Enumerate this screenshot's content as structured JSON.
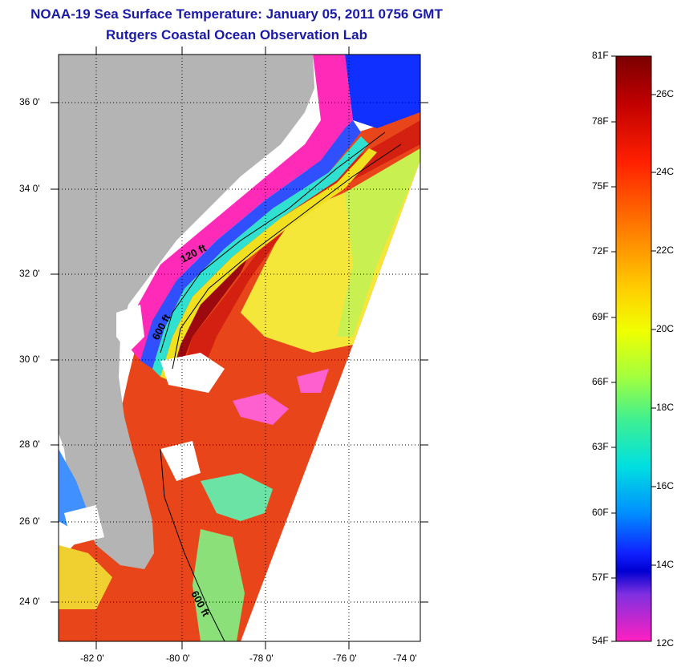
{
  "title": {
    "line1": "NOAA-19 Sea Surface Temperature:  January 05, 2011 0756 GMT",
    "line2": "Rutgers Coastal Ocean Observation Lab"
  },
  "map": {
    "lat_labels": [
      "36 0'",
      "34 0'",
      "32 0'",
      "30 0'",
      "28 0'",
      "26 0'",
      "24 0'"
    ],
    "lon_labels": [
      "-82 0'",
      "-80 0'",
      "-78 0'",
      "-76 0'",
      "-74 0'"
    ],
    "isobath_labels": [
      "120 ft",
      "600 ft",
      "600 ft"
    ],
    "colors": {
      "land": "#b4b4b4",
      "cloud": "#ffffff",
      "warm": "#d42010",
      "hot": "#9c0a10",
      "cool": "#2040ff"
    }
  },
  "colorbar": {
    "fahrenheit": [
      "81F",
      "78F",
      "75F",
      "72F",
      "69F",
      "66F",
      "63F",
      "60F",
      "57F",
      "54F"
    ],
    "celsius": [
      "26C",
      "24C",
      "22C",
      "20C",
      "18C",
      "16C",
      "14C",
      "12C"
    ]
  }
}
